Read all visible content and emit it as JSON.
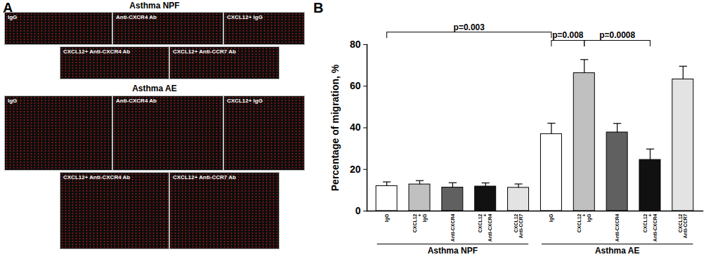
{
  "panel_a": {
    "label": "A",
    "sections": [
      {
        "title": "Asthma NPF",
        "rows": [
          [
            "IgG",
            "Anti-CXCR4 Ab",
            "CXCL12+ IgG"
          ],
          [
            "CXCL12+ Anti-CXCR4 Ab",
            "CXCL12+ Anti-CCR7 Ab"
          ]
        ]
      },
      {
        "title": "Asthma AE",
        "rows": [
          [
            "IgG",
            "Anti-CXCR4 Ab",
            "CXCL12+ IgG"
          ],
          [
            "CXCL12+ Anti-CXCR4 Ab",
            "CXCL12+ Anti-CCR7 Ab"
          ]
        ]
      }
    ]
  },
  "chart_data": {
    "type": "bar",
    "panel_label": "B",
    "y_label": "Percentage of migration, %",
    "categories": [
      "IgG",
      "CXCL12\n+\nIgG",
      "Anti-CXCR4",
      "CXCL12\n+\nAnti-CXCR4",
      "CXCL12\nAnti-CCR7",
      "IgG",
      "CXCL12\n+\nIgG",
      "Anti-CXCR4",
      "CXCL12\n+\nAnti-CXCR4",
      "CXCL12\nAnti-CCR7"
    ],
    "values": [
      12,
      12.8,
      11.3,
      11.8,
      11.2,
      37,
      66.3,
      37.8,
      24.6,
      63.3
    ],
    "errors": [
      2,
      1.8,
      2.3,
      1.7,
      1.8,
      5.2,
      6.5,
      4.3,
      5.2,
      6.3
    ],
    "colors": [
      "#ffffff",
      "#c0c0c0",
      "#606060",
      "#111111",
      "#e3e3e3",
      "#ffffff",
      "#c0c0c0",
      "#606060",
      "#111111",
      "#e3e3e3"
    ],
    "groups": [
      "Asthma NPF",
      "Asthma AE"
    ],
    "annotations": [
      {
        "from": 0,
        "to": 5,
        "y": 86,
        "label": "p=0.003"
      },
      {
        "from": 5,
        "to": 6,
        "y": 82,
        "label": "p=0.008"
      },
      {
        "from": 6,
        "to": 8,
        "y": 82,
        "label": "p=0.0008"
      }
    ],
    "ylim": [
      0,
      80
    ],
    "yticks": [
      0,
      20,
      40,
      60,
      80
    ],
    "grid": false
  }
}
